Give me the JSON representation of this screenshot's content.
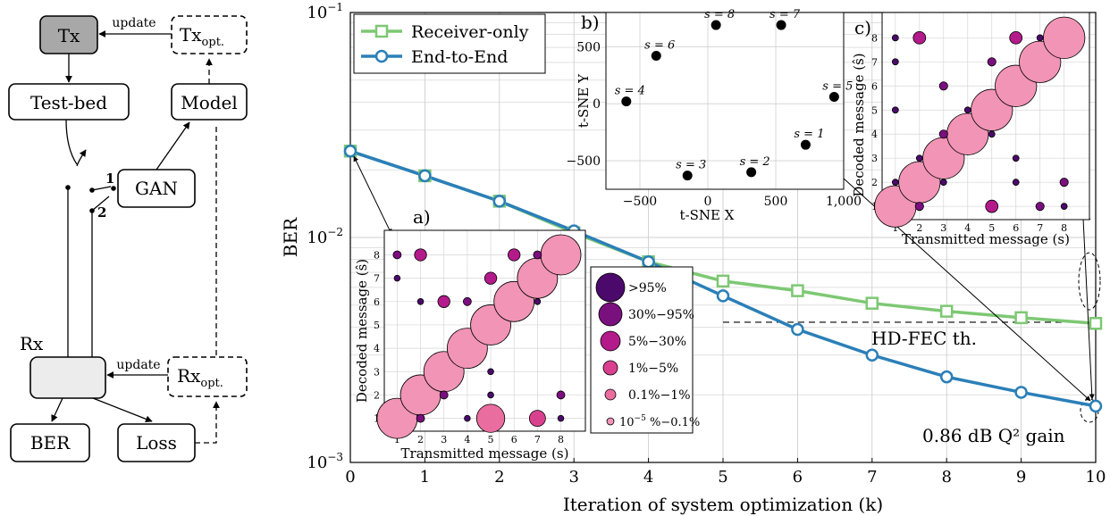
{
  "diagram": {
    "tx": "Tx",
    "tx_opt": "Tx",
    "tx_opt_sub": "opt.",
    "testbed": "Test-bed",
    "model": "Model",
    "gan": "GAN",
    "rx_label": "Rx",
    "rx_opt": "Rx",
    "rx_opt_sub": "opt.",
    "ber": "BER",
    "loss": "Loss",
    "update_top": "update",
    "update_bottom": "update",
    "switch_1": "1",
    "switch_2": "2"
  },
  "chart_data": [
    {
      "type": "line",
      "xlabel": "Iteration of system optimization (k)",
      "ylabel": "BER",
      "xlim": [
        0,
        10
      ],
      "ylim": [
        0.001,
        0.1
      ],
      "yscale": "log",
      "x_ticks": [
        0,
        1,
        2,
        3,
        4,
        5,
        6,
        7,
        8,
        9,
        10
      ],
      "y_tick_labels": [
        "10−3",
        "10−2",
        "10−1"
      ],
      "grid": true,
      "legend_position": "top-left",
      "x": [
        0,
        1,
        2,
        3,
        4,
        5,
        6,
        7,
        8,
        9,
        10
      ],
      "series": [
        {
          "name": "Receiver-only",
          "color": "#7dc873",
          "marker": "square",
          "values": [
            0.0242,
            0.0188,
            0.0145,
            0.0105,
            0.0078,
            0.0064,
            0.0058,
            0.0051,
            0.0047,
            0.0044,
            0.00415
          ]
        },
        {
          "name": "End-to-End",
          "color": "#2b7fb8",
          "marker": "circle",
          "values": [
            0.0242,
            0.0188,
            0.0145,
            0.0107,
            0.0078,
            0.0055,
            0.0039,
            0.003,
            0.0024,
            0.00205,
            0.00178
          ]
        }
      ],
      "annotations": {
        "hdfec_label": "HD-FEC th.",
        "hdfec_value": 0.0042,
        "gain_label": "0.86 dB Q² gain"
      }
    },
    {
      "type": "scatter",
      "panel_label": "b)",
      "xlabel": "t-SNE X",
      "ylabel": "t-SNE Y",
      "xlim": [
        -750,
        1000
      ],
      "ylim": [
        -750,
        800
      ],
      "x_ticks": [
        -500,
        0,
        500,
        1000
      ],
      "x_tick_labels": [
        "−500",
        "0",
        "500",
        "1,000"
      ],
      "y_ticks": [
        -500,
        0,
        500
      ],
      "y_tick_labels": [
        "−500",
        "0",
        "500"
      ],
      "points": [
        {
          "label": "s = 4",
          "x": -600,
          "y": 20
        },
        {
          "label": "s = 6",
          "x": -380,
          "y": 420
        },
        {
          "label": "s = 8",
          "x": 60,
          "y": 690
        },
        {
          "label": "s = 7",
          "x": 540,
          "y": 690
        },
        {
          "label": "s = 5",
          "x": 930,
          "y": 60
        },
        {
          "label": "s = 1",
          "x": 720,
          "y": -360
        },
        {
          "label": "s = 3",
          "x": -150,
          "y": -630
        },
        {
          "label": "s = 2",
          "x": 320,
          "y": -600
        }
      ]
    },
    {
      "type": "bubble",
      "panel_label": "a)",
      "xlabel": "Transmitted message (s)",
      "ylabel": "Decoded message (ŝ)",
      "ticks": [
        "1",
        "2",
        "3",
        "4",
        "5",
        "6",
        "7",
        "8"
      ],
      "bubbles": [
        {
          "x": 1,
          "y": 1,
          "c": 5
        },
        {
          "x": 2,
          "y": 2,
          "c": 5
        },
        {
          "x": 3,
          "y": 3,
          "c": 5
        },
        {
          "x": 4,
          "y": 4,
          "c": 5
        },
        {
          "x": 5,
          "y": 5,
          "c": 5
        },
        {
          "x": 6,
          "y": 6,
          "c": 5
        },
        {
          "x": 7,
          "y": 7,
          "c": 5
        },
        {
          "x": 8,
          "y": 8,
          "c": 5
        },
        {
          "x": 1,
          "y": 8,
          "c": 1
        },
        {
          "x": 1,
          "y": 7,
          "c": 0
        },
        {
          "x": 2,
          "y": 8,
          "c": 2
        },
        {
          "x": 2,
          "y": 6,
          "c": 0
        },
        {
          "x": 2,
          "y": 1,
          "c": 1
        },
        {
          "x": 3,
          "y": 6,
          "c": 2
        },
        {
          "x": 3,
          "y": 2,
          "c": 1
        },
        {
          "x": 4,
          "y": 6,
          "c": 1
        },
        {
          "x": 4,
          "y": 1,
          "c": 0
        },
        {
          "x": 5,
          "y": 7,
          "c": 2
        },
        {
          "x": 5,
          "y": 1,
          "c": 4
        },
        {
          "x": 5,
          "y": 3,
          "c": 0
        },
        {
          "x": 5,
          "y": 2,
          "c": 0
        },
        {
          "x": 6,
          "y": 8,
          "c": 2
        },
        {
          "x": 7,
          "y": 8,
          "c": 1
        },
        {
          "x": 7,
          "y": 1,
          "c": 3
        },
        {
          "x": 7,
          "y": 6,
          "c": 0
        },
        {
          "x": 8,
          "y": 2,
          "c": 1
        },
        {
          "x": 8,
          "y": 1,
          "c": 0
        }
      ],
      "legend": [
        {
          "label": ">95%",
          "color": "#4b0a6b"
        },
        {
          "label": "30%−95%",
          "color": "#7a0f7e"
        },
        {
          "label": "5%−30%",
          "color": "#b31a8a"
        },
        {
          "label": "1%−5%",
          "color": "#d9418f"
        },
        {
          "label": "0.1%−1%",
          "color": "#ea6d9f"
        },
        {
          "label": "10−5 %−0.1%",
          "color": "#f194b5"
        }
      ]
    },
    {
      "type": "bubble",
      "panel_label": "c)",
      "xlabel": "Transmitted message (s)",
      "ylabel": "Decoded message (ŝ)",
      "ticks": [
        "1",
        "2",
        "3",
        "4",
        "5",
        "6",
        "7",
        "8"
      ],
      "bubbles": [
        {
          "x": 1,
          "y": 1,
          "c": 5
        },
        {
          "x": 2,
          "y": 2,
          "c": 5
        },
        {
          "x": 3,
          "y": 3,
          "c": 5
        },
        {
          "x": 4,
          "y": 4,
          "c": 5
        },
        {
          "x": 5,
          "y": 5,
          "c": 5
        },
        {
          "x": 6,
          "y": 6,
          "c": 5
        },
        {
          "x": 7,
          "y": 7,
          "c": 5
        },
        {
          "x": 8,
          "y": 8,
          "c": 5
        },
        {
          "x": 1,
          "y": 8,
          "c": 0
        },
        {
          "x": 1,
          "y": 7,
          "c": 0
        },
        {
          "x": 1,
          "y": 5,
          "c": 0
        },
        {
          "x": 1,
          "y": 2,
          "c": 0
        },
        {
          "x": 2,
          "y": 8,
          "c": 2
        },
        {
          "x": 2,
          "y": 1,
          "c": 1
        },
        {
          "x": 2,
          "y": 3,
          "c": 0
        },
        {
          "x": 3,
          "y": 6,
          "c": 1
        },
        {
          "x": 3,
          "y": 4,
          "c": 1
        },
        {
          "x": 3,
          "y": 2,
          "c": 0
        },
        {
          "x": 4,
          "y": 5,
          "c": 0
        },
        {
          "x": 5,
          "y": 7,
          "c": 1
        },
        {
          "x": 5,
          "y": 1,
          "c": 2
        },
        {
          "x": 5,
          "y": 4,
          "c": 0
        },
        {
          "x": 6,
          "y": 8,
          "c": 2
        },
        {
          "x": 6,
          "y": 2,
          "c": 0
        },
        {
          "x": 6,
          "y": 3,
          "c": 0
        },
        {
          "x": 7,
          "y": 8,
          "c": 0
        },
        {
          "x": 7,
          "y": 1,
          "c": 1
        },
        {
          "x": 8,
          "y": 2,
          "c": 1
        },
        {
          "x": 8,
          "y": 1,
          "c": 0
        }
      ]
    }
  ]
}
